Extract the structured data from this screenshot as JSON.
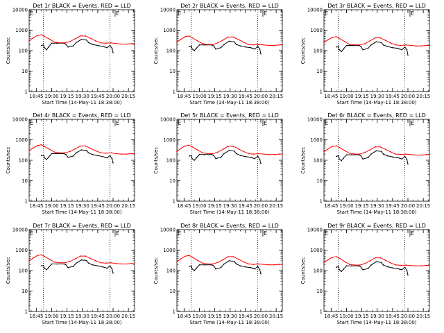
{
  "chart_data": {
    "type": "line",
    "xlabel": "Start Time (14-May-11 18:38:00)",
    "ylabel": "Counts/sec",
    "x_ticks": [
      "18:45",
      "19:00",
      "19:15",
      "19:30",
      "19:45",
      "20:00",
      "20:15"
    ],
    "x_tick_minutes": [
      7,
      22,
      37,
      52,
      67,
      82,
      97
    ],
    "x_range_minutes": [
      0,
      103
    ],
    "y_ticks": [
      "1",
      "10",
      "100",
      "1000",
      "10000"
    ],
    "y_scale": "log",
    "ylim": [
      1,
      10000
    ],
    "marker_lines_minutes": [
      14,
      79
    ],
    "flag_minutes": 84,
    "flag_label": "E",
    "series_colors": {
      "events": "#000000",
      "lld": "#ff0000"
    },
    "panels": [
      {
        "title": "Det 1r BLACK = Events, RED = LLD",
        "series": [
          {
            "name": "Events",
            "color": "#000000",
            "x": [
              12,
              14,
              15,
              17,
              19,
              22,
              27,
              34,
              36,
              38,
              43,
              46,
              51,
              56,
              58,
              62,
              67,
              72,
              74,
              76,
              79,
              81,
              82
            ],
            "y": [
              180,
              190,
              140,
              110,
              150,
              230,
              230,
              230,
              200,
              150,
              170,
              250,
              350,
              330,
              250,
              200,
              180,
              160,
              150,
              140,
              180,
              130,
              80
            ]
          },
          {
            "name": "LLD",
            "color": "#ff0000",
            "x": [
              0,
              4,
              8,
              12,
              15,
              20,
              25,
              30,
              35,
              40,
              45,
              50,
              55,
              60,
              65,
              70,
              75,
              80,
              85,
              90,
              95,
              100,
              103
            ],
            "y": [
              300,
              420,
              550,
              600,
              500,
              360,
              260,
              240,
              240,
              280,
              380,
              520,
              520,
              400,
              300,
              240,
              230,
              240,
              220,
              210,
              210,
              220,
              220
            ]
          }
        ]
      },
      {
        "title": "Det 2r BLACK = Events, RED = LLD",
        "series": [
          {
            "name": "Events",
            "color": "#000000",
            "x": [
              12,
              14,
              15,
              17,
              19,
              22,
              27,
              34,
              36,
              38,
              43,
              46,
              51,
              56,
              58,
              62,
              67,
              72,
              74,
              76,
              79,
              81,
              82
            ],
            "y": [
              160,
              170,
              120,
              100,
              130,
              190,
              190,
              190,
              170,
              120,
              140,
              200,
              290,
              270,
              200,
              170,
              150,
              140,
              130,
              120,
              160,
              120,
              70
            ]
          },
          {
            "name": "LLD",
            "color": "#ff0000",
            "x": [
              0,
              4,
              8,
              12,
              15,
              20,
              25,
              30,
              35,
              40,
              45,
              50,
              55,
              60,
              65,
              70,
              75,
              80,
              85,
              90,
              95,
              100,
              103
            ],
            "y": [
              260,
              360,
              480,
              520,
              430,
              300,
              220,
              200,
              200,
              240,
              330,
              460,
              460,
              350,
              260,
              200,
              190,
              200,
              190,
              180,
              180,
              190,
              190
            ]
          }
        ]
      },
      {
        "title": "Det 3r BLACK = Events, RED = LLD",
        "series": [
          {
            "name": "Events",
            "color": "#000000",
            "x": [
              12,
              14,
              15,
              17,
              19,
              22,
              27,
              34,
              36,
              38,
              43,
              46,
              51,
              56,
              58,
              62,
              67,
              72,
              74,
              76,
              79,
              81,
              82
            ],
            "y": [
              150,
              160,
              110,
              90,
              120,
              180,
              180,
              180,
              160,
              110,
              130,
              190,
              270,
              250,
              190,
              160,
              140,
              130,
              120,
              110,
              150,
              110,
              60
            ]
          },
          {
            "name": "LLD",
            "color": "#ff0000",
            "x": [
              0,
              4,
              8,
              12,
              15,
              20,
              25,
              30,
              35,
              40,
              45,
              50,
              55,
              60,
              65,
              70,
              75,
              80,
              85,
              90,
              95,
              100,
              103
            ],
            "y": [
              250,
              340,
              440,
              480,
              400,
              280,
              200,
              190,
              190,
              220,
              300,
              420,
              420,
              320,
              240,
              190,
              180,
              190,
              180,
              170,
              170,
              180,
              180
            ]
          }
        ]
      },
      {
        "title": "Det 4r BLACK = Events, RED = LLD",
        "series": [
          {
            "name": "Events",
            "color": "#000000",
            "x": [
              12,
              14,
              15,
              17,
              19,
              22,
              27,
              34,
              36,
              38,
              43,
              46,
              51,
              56,
              58,
              62,
              67,
              72,
              74,
              76,
              79,
              81,
              82
            ],
            "y": [
              170,
              180,
              130,
              110,
              140,
              210,
              210,
              210,
              190,
              140,
              160,
              230,
              320,
              300,
              230,
              190,
              170,
              150,
              140,
              130,
              170,
              120,
              75
            ]
          },
          {
            "name": "LLD",
            "color": "#ff0000",
            "x": [
              0,
              4,
              8,
              12,
              15,
              20,
              25,
              30,
              35,
              40,
              45,
              50,
              55,
              60,
              65,
              70,
              75,
              80,
              85,
              90,
              95,
              100,
              103
            ],
            "y": [
              290,
              400,
              520,
              570,
              470,
              340,
              250,
              230,
              230,
              270,
              360,
              500,
              500,
              380,
              290,
              230,
              220,
              230,
              210,
              200,
              200,
              210,
              210
            ]
          }
        ]
      },
      {
        "title": "Det 5r BLACK = Events, RED = LLD",
        "series": [
          {
            "name": "Events",
            "color": "#000000",
            "x": [
              12,
              14,
              15,
              17,
              19,
              22,
              27,
              34,
              36,
              38,
              43,
              46,
              51,
              56,
              58,
              62,
              67,
              72,
              74,
              76,
              79,
              81,
              82
            ],
            "y": [
              160,
              170,
              120,
              100,
              130,
              190,
              190,
              190,
              170,
              120,
              140,
              210,
              300,
              280,
              210,
              170,
              150,
              140,
              130,
              120,
              160,
              110,
              70
            ]
          },
          {
            "name": "LLD",
            "color": "#ff0000",
            "x": [
              0,
              4,
              8,
              12,
              15,
              20,
              25,
              30,
              35,
              40,
              45,
              50,
              55,
              60,
              65,
              70,
              75,
              80,
              85,
              90,
              95,
              100,
              103
            ],
            "y": [
              270,
              380,
              500,
              540,
              450,
              320,
              230,
              210,
              210,
              250,
              340,
              480,
              480,
              360,
              270,
              210,
              200,
              210,
              200,
              190,
              190,
              200,
              200
            ]
          }
        ]
      },
      {
        "title": "Det 6r BLACK = Events, RED = LLD",
        "series": [
          {
            "name": "Events",
            "color": "#000000",
            "x": [
              12,
              14,
              15,
              17,
              19,
              22,
              27,
              34,
              36,
              38,
              43,
              46,
              51,
              56,
              58,
              62,
              67,
              72,
              74,
              76,
              79,
              81,
              82
            ],
            "y": [
              155,
              165,
              115,
              95,
              125,
              185,
              185,
              185,
              165,
              115,
              135,
              200,
              290,
              270,
              200,
              165,
              145,
              135,
              125,
              115,
              155,
              110,
              65
            ]
          },
          {
            "name": "LLD",
            "color": "#ff0000",
            "x": [
              0,
              4,
              8,
              12,
              15,
              20,
              25,
              30,
              35,
              40,
              45,
              50,
              55,
              60,
              65,
              70,
              75,
              80,
              85,
              90,
              95,
              100,
              103
            ],
            "y": [
              260,
              360,
              470,
              510,
              420,
              300,
              220,
              200,
              200,
              240,
              320,
              450,
              450,
              340,
              260,
              200,
              190,
              200,
              190,
              180,
              180,
              190,
              190
            ]
          }
        ]
      },
      {
        "title": "Det 7r BLACK = Events, RED = LLD",
        "series": [
          {
            "name": "Events",
            "color": "#000000",
            "x": [
              12,
              14,
              15,
              17,
              19,
              22,
              27,
              34,
              36,
              38,
              43,
              46,
              51,
              56,
              58,
              62,
              67,
              72,
              74,
              76,
              79,
              81,
              82
            ],
            "y": [
              170,
              180,
              130,
              110,
              140,
              210,
              210,
              210,
              190,
              140,
              160,
              230,
              330,
              310,
              230,
              190,
              170,
              150,
              140,
              130,
              170,
              120,
              75
            ]
          },
          {
            "name": "LLD",
            "color": "#ff0000",
            "x": [
              0,
              4,
              8,
              12,
              15,
              20,
              25,
              30,
              35,
              40,
              45,
              50,
              55,
              60,
              65,
              70,
              75,
              80,
              85,
              90,
              95,
              100,
              103
            ],
            "y": [
              300,
              410,
              540,
              590,
              490,
              350,
              260,
              240,
              240,
              280,
              370,
              510,
              510,
              390,
              300,
              240,
              230,
              240,
              220,
              210,
              210,
              220,
              220
            ]
          }
        ]
      },
      {
        "title": "Det 8r BLACK = Events, RED = LLD",
        "series": [
          {
            "name": "Events",
            "color": "#000000",
            "x": [
              12,
              14,
              15,
              17,
              19,
              22,
              27,
              34,
              36,
              38,
              43,
              46,
              51,
              56,
              58,
              62,
              67,
              72,
              74,
              76,
              79,
              81,
              82
            ],
            "y": [
              160,
              170,
              120,
              100,
              130,
              190,
              190,
              190,
              170,
              120,
              140,
              210,
              300,
              280,
              210,
              170,
              150,
              140,
              130,
              120,
              160,
              110,
              70
            ]
          },
          {
            "name": "LLD",
            "color": "#ff0000",
            "x": [
              0,
              4,
              8,
              12,
              15,
              20,
              25,
              30,
              35,
              40,
              45,
              50,
              55,
              60,
              65,
              70,
              75,
              80,
              85,
              90,
              95,
              100,
              103
            ],
            "y": [
              270,
              380,
              500,
              550,
              450,
              320,
              230,
              210,
              210,
              250,
              340,
              480,
              480,
              360,
              270,
              210,
              200,
              210,
              200,
              190,
              190,
              200,
              200
            ]
          }
        ]
      },
      {
        "title": "Det 9r BLACK = Events, RED = LLD",
        "series": [
          {
            "name": "Events",
            "color": "#000000",
            "x": [
              12,
              14,
              15,
              17,
              19,
              22,
              27,
              34,
              36,
              38,
              43,
              46,
              51,
              56,
              58,
              62,
              67,
              72,
              74,
              76,
              79,
              81,
              82
            ],
            "y": [
              145,
              155,
              110,
              90,
              115,
              170,
              170,
              170,
              150,
              110,
              125,
              185,
              270,
              250,
              185,
              155,
              135,
              125,
              115,
              110,
              145,
              100,
              60
            ]
          },
          {
            "name": "LLD",
            "color": "#ff0000",
            "x": [
              0,
              4,
              8,
              12,
              15,
              20,
              25,
              30,
              35,
              40,
              45,
              50,
              55,
              60,
              65,
              70,
              75,
              80,
              85,
              90,
              95,
              100,
              103
            ],
            "y": [
              240,
              340,
              440,
              480,
              400,
              280,
              200,
              185,
              185,
              220,
              300,
              420,
              420,
              320,
              240,
              190,
              180,
              185,
              175,
              170,
              170,
              180,
              180
            ]
          }
        ]
      }
    ]
  }
}
